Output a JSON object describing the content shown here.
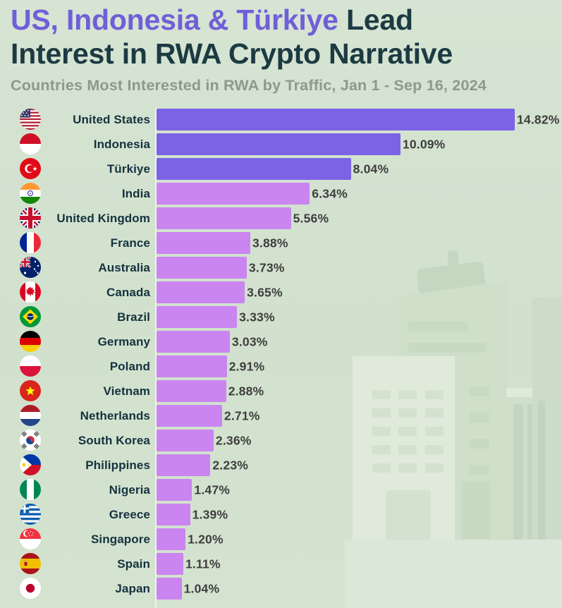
{
  "header": {
    "title_highlight": "US, Indonesia & Türkiye",
    "title_tail": " Lead",
    "title_line2": "Interest in RWA Crypto Narrative",
    "subtitle": "Countries Most Interested in RWA by Traffic, Jan 1 - Sep 16, 2024"
  },
  "colors": {
    "accent_purple": "#6F5FD8",
    "bar_top3": "#7C63E6",
    "bar_rest": "#CA85F0",
    "title_dark": "#1C3A42",
    "label_dark": "#14323E",
    "subtitle_gray": "#8C998D",
    "value_gray": "#3E3E3E",
    "background_green": "#D2E2CE"
  },
  "chart_data": {
    "type": "bar",
    "orientation": "horizontal",
    "title": "US, Indonesia & Türkiye Lead Interest in RWA Crypto Narrative",
    "subtitle": "Countries Most Interested in RWA by Traffic, Jan 1 - Sep 16, 2024",
    "unit": "%",
    "xlim": [
      0,
      14.82
    ],
    "grid": false,
    "legend": false,
    "highlight_top_n": 3,
    "categories": [
      "United States",
      "Indonesia",
      "Türkiye",
      "India",
      "United Kingdom",
      "France",
      "Australia",
      "Canada",
      "Brazil",
      "Germany",
      "Poland",
      "Vietnam",
      "Netherlands",
      "South Korea",
      "Philippines",
      "Nigeria",
      "Greece",
      "Singapore",
      "Spain",
      "Japan"
    ],
    "values": [
      14.82,
      10.09,
      8.04,
      6.34,
      5.56,
      3.88,
      3.73,
      3.65,
      3.33,
      3.03,
      2.91,
      2.88,
      2.71,
      2.36,
      2.23,
      1.47,
      1.39,
      1.2,
      1.11,
      1.04
    ],
    "value_labels": [
      "14.82%",
      "10.09%",
      "8.04%",
      "6.34%",
      "5.56%",
      "3.88%",
      "3.73%",
      "3.65%",
      "3.33%",
      "3.03%",
      "2.91%",
      "2.88%",
      "2.71%",
      "2.36%",
      "2.23%",
      "1.47%",
      "1.39%",
      "1.20%",
      "1.11%",
      "1.04%"
    ],
    "flags": [
      "us",
      "id",
      "tr",
      "in",
      "gb",
      "fr",
      "au",
      "ca",
      "br",
      "de",
      "pl",
      "vn",
      "nl",
      "kr",
      "ph",
      "ng",
      "gr",
      "sg",
      "es",
      "jp"
    ]
  }
}
